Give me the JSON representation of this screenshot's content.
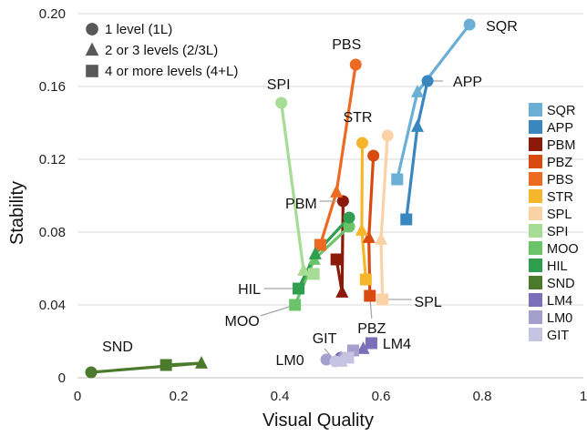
{
  "chart_data": {
    "type": "line",
    "title": "",
    "xlabel": "Visual Quality",
    "ylabel": "Stability",
    "xlim": [
      0,
      1
    ],
    "ylim": [
      0,
      0.2
    ],
    "x_ticks": [
      "0",
      "0.2",
      "0.4",
      "0.6",
      "0.8",
      "1"
    ],
    "y_ticks": [
      "0",
      "0.04",
      "0.08",
      "0.12",
      "0.16",
      "0.20"
    ],
    "grid": "horizontal",
    "marker_legend": {
      "position": "top-left",
      "entries": [
        {
          "shape": "circle",
          "label": "1 level (1L)"
        },
        {
          "shape": "triangle",
          "label": "2 or 3 levels (2/3L)"
        },
        {
          "shape": "square",
          "label": "4 or more levels (4+L)"
        }
      ]
    },
    "legend_position": "right",
    "series": [
      {
        "name": "SQR",
        "color": "#6baed6",
        "points": [
          [
            0.775,
            0.194,
            "circle"
          ],
          [
            0.672,
            0.157,
            "triangle"
          ],
          [
            0.632,
            0.109,
            "square"
          ]
        ]
      },
      {
        "name": "APP",
        "color": "#3a87c0",
        "points": [
          [
            0.692,
            0.163,
            "circle"
          ],
          [
            0.672,
            0.138,
            "triangle"
          ],
          [
            0.65,
            0.087,
            "square"
          ]
        ]
      },
      {
        "name": "PBM",
        "color": "#8b1a0a",
        "points": [
          [
            0.525,
            0.097,
            "circle"
          ],
          [
            0.523,
            0.047,
            "triangle"
          ],
          [
            0.512,
            0.065,
            "square"
          ]
        ]
      },
      {
        "name": "PBZ",
        "color": "#d84a10",
        "points": [
          [
            0.585,
            0.122,
            "circle"
          ],
          [
            0.576,
            0.077,
            "triangle"
          ],
          [
            0.578,
            0.045,
            "square"
          ]
        ]
      },
      {
        "name": "PBS",
        "color": "#ed6a23",
        "points": [
          [
            0.55,
            0.172,
            "circle"
          ],
          [
            0.512,
            0.102,
            "triangle"
          ],
          [
            0.48,
            0.073,
            "square"
          ]
        ]
      },
      {
        "name": "STR",
        "color": "#f5b62c",
        "points": [
          [
            0.563,
            0.129,
            "circle"
          ],
          [
            0.562,
            0.081,
            "triangle"
          ],
          [
            0.57,
            0.054,
            "square"
          ]
        ]
      },
      {
        "name": "SPL",
        "color": "#fad2a6",
        "points": [
          [
            0.613,
            0.133,
            "circle"
          ],
          [
            0.6,
            0.076,
            "triangle"
          ],
          [
            0.603,
            0.043,
            "square"
          ]
        ]
      },
      {
        "name": "SPI",
        "color": "#a6dc94",
        "points": [
          [
            0.403,
            0.151,
            "circle"
          ],
          [
            0.447,
            0.059,
            "triangle"
          ],
          [
            0.467,
            0.057,
            "square"
          ]
        ]
      },
      {
        "name": "MOO",
        "color": "#6cc46a",
        "points": [
          [
            0.537,
            0.083,
            "circle"
          ],
          [
            0.468,
            0.065,
            "triangle"
          ],
          [
            0.43,
            0.04,
            "square"
          ]
        ]
      },
      {
        "name": "HIL",
        "color": "#2f9e4e",
        "points": [
          [
            0.537,
            0.088,
            "circle"
          ],
          [
            0.47,
            0.068,
            "triangle"
          ],
          [
            0.437,
            0.049,
            "square"
          ]
        ]
      },
      {
        "name": "SND",
        "color": "#4c7a2c",
        "points": [
          [
            0.027,
            0.003,
            "circle"
          ],
          [
            0.245,
            0.008,
            "triangle"
          ],
          [
            0.175,
            0.007,
            "square"
          ]
        ]
      },
      {
        "name": "LM4",
        "color": "#7b6fb9",
        "points": [
          [
            0.52,
            0.011,
            "circle"
          ],
          [
            0.565,
            0.016,
            "triangle"
          ],
          [
            0.581,
            0.019,
            "square"
          ]
        ]
      },
      {
        "name": "LM0",
        "color": "#a59fce",
        "points": [
          [
            0.492,
            0.01,
            "circle"
          ],
          [
            0.521,
            0.011,
            "triangle"
          ],
          [
            0.545,
            0.015,
            "square"
          ]
        ]
      },
      {
        "name": "GIT",
        "color": "#c7c3e2",
        "points": [
          [
            0.51,
            0.009,
            "circle"
          ],
          [
            0.522,
            0.009,
            "triangle"
          ],
          [
            0.535,
            0.011,
            "square"
          ]
        ]
      }
    ],
    "annotations": [
      {
        "text": "SQR",
        "at": [
          0.775,
          0.194
        ]
      },
      {
        "text": "APP",
        "at": [
          0.692,
          0.163
        ]
      },
      {
        "text": "PBS",
        "at": [
          0.55,
          0.172
        ]
      },
      {
        "text": "SPI",
        "at": [
          0.403,
          0.151
        ]
      },
      {
        "text": "STR",
        "at": [
          0.563,
          0.129
        ]
      },
      {
        "text": "PBM",
        "at": [
          0.525,
          0.097
        ]
      },
      {
        "text": "HIL",
        "at": [
          0.437,
          0.049
        ]
      },
      {
        "text": "MOO",
        "at": [
          0.43,
          0.04
        ]
      },
      {
        "text": "SPL",
        "at": [
          0.603,
          0.043
        ]
      },
      {
        "text": "PBZ",
        "at": [
          0.578,
          0.045
        ]
      },
      {
        "text": "GIT",
        "at": [
          0.51,
          0.009
        ]
      },
      {
        "text": "LM0",
        "at": [
          0.492,
          0.01
        ]
      },
      {
        "text": "LM4",
        "at": [
          0.581,
          0.019
        ]
      },
      {
        "text": "SND",
        "at": [
          0.027,
          0.003
        ]
      }
    ]
  }
}
